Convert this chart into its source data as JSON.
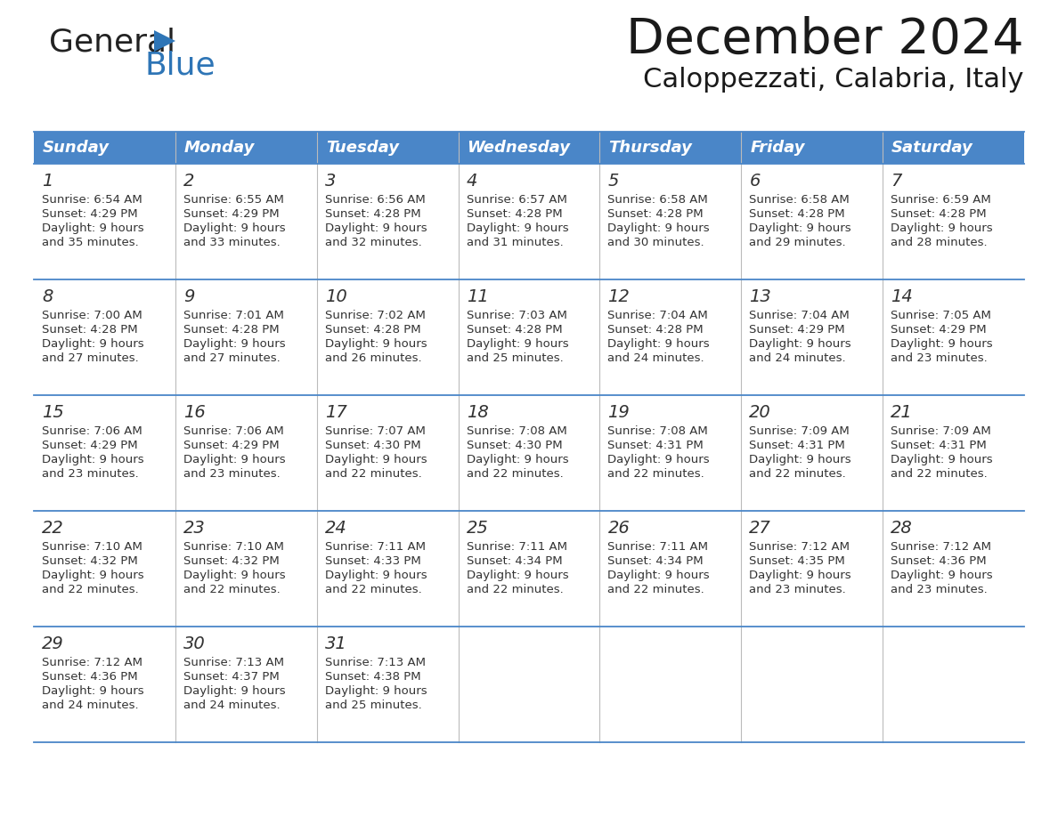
{
  "title": "December 2024",
  "subtitle": "Caloppezzati, Calabria, Italy",
  "header_color": "#4a86c8",
  "header_text_color": "#FFFFFF",
  "background_color": "#FFFFFF",
  "text_color": "#333333",
  "line_color": "#4a86c8",
  "gray_line_color": "#aaaaaa",
  "days_of_week": [
    "Sunday",
    "Monday",
    "Tuesday",
    "Wednesday",
    "Thursday",
    "Friday",
    "Saturday"
  ],
  "calendar_data": [
    [
      {
        "day": "1",
        "sunrise": "6:54 AM",
        "sunset": "4:29 PM",
        "daylight_h": "9 hours",
        "daylight_m": "and 35 minutes."
      },
      {
        "day": "2",
        "sunrise": "6:55 AM",
        "sunset": "4:29 PM",
        "daylight_h": "9 hours",
        "daylight_m": "and 33 minutes."
      },
      {
        "day": "3",
        "sunrise": "6:56 AM",
        "sunset": "4:28 PM",
        "daylight_h": "9 hours",
        "daylight_m": "and 32 minutes."
      },
      {
        "day": "4",
        "sunrise": "6:57 AM",
        "sunset": "4:28 PM",
        "daylight_h": "9 hours",
        "daylight_m": "and 31 minutes."
      },
      {
        "day": "5",
        "sunrise": "6:58 AM",
        "sunset": "4:28 PM",
        "daylight_h": "9 hours",
        "daylight_m": "and 30 minutes."
      },
      {
        "day": "6",
        "sunrise": "6:58 AM",
        "sunset": "4:28 PM",
        "daylight_h": "9 hours",
        "daylight_m": "and 29 minutes."
      },
      {
        "day": "7",
        "sunrise": "6:59 AM",
        "sunset": "4:28 PM",
        "daylight_h": "9 hours",
        "daylight_m": "and 28 minutes."
      }
    ],
    [
      {
        "day": "8",
        "sunrise": "7:00 AM",
        "sunset": "4:28 PM",
        "daylight_h": "9 hours",
        "daylight_m": "and 27 minutes."
      },
      {
        "day": "9",
        "sunrise": "7:01 AM",
        "sunset": "4:28 PM",
        "daylight_h": "9 hours",
        "daylight_m": "and 27 minutes."
      },
      {
        "day": "10",
        "sunrise": "7:02 AM",
        "sunset": "4:28 PM",
        "daylight_h": "9 hours",
        "daylight_m": "and 26 minutes."
      },
      {
        "day": "11",
        "sunrise": "7:03 AM",
        "sunset": "4:28 PM",
        "daylight_h": "9 hours",
        "daylight_m": "and 25 minutes."
      },
      {
        "day": "12",
        "sunrise": "7:04 AM",
        "sunset": "4:28 PM",
        "daylight_h": "9 hours",
        "daylight_m": "and 24 minutes."
      },
      {
        "day": "13",
        "sunrise": "7:04 AM",
        "sunset": "4:29 PM",
        "daylight_h": "9 hours",
        "daylight_m": "and 24 minutes."
      },
      {
        "day": "14",
        "sunrise": "7:05 AM",
        "sunset": "4:29 PM",
        "daylight_h": "9 hours",
        "daylight_m": "and 23 minutes."
      }
    ],
    [
      {
        "day": "15",
        "sunrise": "7:06 AM",
        "sunset": "4:29 PM",
        "daylight_h": "9 hours",
        "daylight_m": "and 23 minutes."
      },
      {
        "day": "16",
        "sunrise": "7:06 AM",
        "sunset": "4:29 PM",
        "daylight_h": "9 hours",
        "daylight_m": "and 23 minutes."
      },
      {
        "day": "17",
        "sunrise": "7:07 AM",
        "sunset": "4:30 PM",
        "daylight_h": "9 hours",
        "daylight_m": "and 22 minutes."
      },
      {
        "day": "18",
        "sunrise": "7:08 AM",
        "sunset": "4:30 PM",
        "daylight_h": "9 hours",
        "daylight_m": "and 22 minutes."
      },
      {
        "day": "19",
        "sunrise": "7:08 AM",
        "sunset": "4:31 PM",
        "daylight_h": "9 hours",
        "daylight_m": "and 22 minutes."
      },
      {
        "day": "20",
        "sunrise": "7:09 AM",
        "sunset": "4:31 PM",
        "daylight_h": "9 hours",
        "daylight_m": "and 22 minutes."
      },
      {
        "day": "21",
        "sunrise": "7:09 AM",
        "sunset": "4:31 PM",
        "daylight_h": "9 hours",
        "daylight_m": "and 22 minutes."
      }
    ],
    [
      {
        "day": "22",
        "sunrise": "7:10 AM",
        "sunset": "4:32 PM",
        "daylight_h": "9 hours",
        "daylight_m": "and 22 minutes."
      },
      {
        "day": "23",
        "sunrise": "7:10 AM",
        "sunset": "4:32 PM",
        "daylight_h": "9 hours",
        "daylight_m": "and 22 minutes."
      },
      {
        "day": "24",
        "sunrise": "7:11 AM",
        "sunset": "4:33 PM",
        "daylight_h": "9 hours",
        "daylight_m": "and 22 minutes."
      },
      {
        "day": "25",
        "sunrise": "7:11 AM",
        "sunset": "4:34 PM",
        "daylight_h": "9 hours",
        "daylight_m": "and 22 minutes."
      },
      {
        "day": "26",
        "sunrise": "7:11 AM",
        "sunset": "4:34 PM",
        "daylight_h": "9 hours",
        "daylight_m": "and 22 minutes."
      },
      {
        "day": "27",
        "sunrise": "7:12 AM",
        "sunset": "4:35 PM",
        "daylight_h": "9 hours",
        "daylight_m": "and 23 minutes."
      },
      {
        "day": "28",
        "sunrise": "7:12 AM",
        "sunset": "4:36 PM",
        "daylight_h": "9 hours",
        "daylight_m": "and 23 minutes."
      }
    ],
    [
      {
        "day": "29",
        "sunrise": "7:12 AM",
        "sunset": "4:36 PM",
        "daylight_h": "9 hours",
        "daylight_m": "and 24 minutes."
      },
      {
        "day": "30",
        "sunrise": "7:13 AM",
        "sunset": "4:37 PM",
        "daylight_h": "9 hours",
        "daylight_m": "and 24 minutes."
      },
      {
        "day": "31",
        "sunrise": "7:13 AM",
        "sunset": "4:38 PM",
        "daylight_h": "9 hours",
        "daylight_m": "and 25 minutes."
      },
      null,
      null,
      null,
      null
    ]
  ],
  "logo_general_color": "#222222",
  "logo_blue_color": "#2E75B6",
  "logo_triangle_color": "#2E75B6",
  "title_fontsize": 40,
  "subtitle_fontsize": 22,
  "header_fontsize": 13,
  "day_num_fontsize": 14,
  "cell_text_fontsize": 9.5
}
